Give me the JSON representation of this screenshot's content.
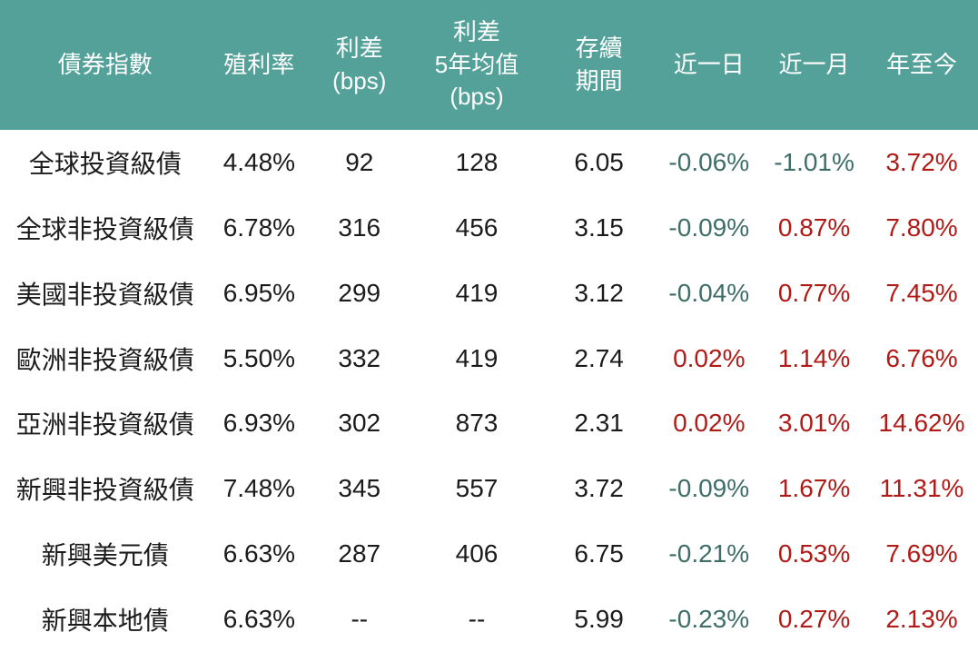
{
  "colors": {
    "header_bg": "#54a19a",
    "header_text": "#ffffff",
    "body_text": "#1b1b1b",
    "negative_change": "#3f6e68",
    "positive_change": "#b01b17"
  },
  "table": {
    "columns": [
      {
        "key": "name",
        "label": "債券指數"
      },
      {
        "key": "yield",
        "label": "殖利率"
      },
      {
        "key": "spread_bps",
        "label": "利差\n(bps)"
      },
      {
        "key": "spread_5y_avg_bps",
        "label": "利差\n5年均值\n(bps)"
      },
      {
        "key": "duration",
        "label": "存續\n期間"
      },
      {
        "key": "chg_1d",
        "label": "近一日"
      },
      {
        "key": "chg_1m",
        "label": "近一月"
      },
      {
        "key": "chg_ytd",
        "label": "年至今"
      }
    ],
    "change_columns": [
      "chg_1d",
      "chg_1m",
      "chg_ytd"
    ],
    "rows": [
      {
        "name": "全球投資級債",
        "yield": "4.48%",
        "spread_bps": "92",
        "spread_5y_avg_bps": "128",
        "duration": "6.05",
        "chg_1d": "-0.06%",
        "chg_1m": "-1.01%",
        "chg_ytd": "3.72%"
      },
      {
        "name": "全球非投資級債",
        "yield": "6.78%",
        "spread_bps": "316",
        "spread_5y_avg_bps": "456",
        "duration": "3.15",
        "chg_1d": "-0.09%",
        "chg_1m": "0.87%",
        "chg_ytd": "7.80%"
      },
      {
        "name": "美國非投資級債",
        "yield": "6.95%",
        "spread_bps": "299",
        "spread_5y_avg_bps": "419",
        "duration": "3.12",
        "chg_1d": "-0.04%",
        "chg_1m": "0.77%",
        "chg_ytd": "7.45%"
      },
      {
        "name": "歐洲非投資級債",
        "yield": "5.50%",
        "spread_bps": "332",
        "spread_5y_avg_bps": "419",
        "duration": "2.74",
        "chg_1d": "0.02%",
        "chg_1m": "1.14%",
        "chg_ytd": "6.76%"
      },
      {
        "name": "亞洲非投資級債",
        "yield": "6.93%",
        "spread_bps": "302",
        "spread_5y_avg_bps": "873",
        "duration": "2.31",
        "chg_1d": "0.02%",
        "chg_1m": "3.01%",
        "chg_ytd": "14.62%"
      },
      {
        "name": "新興非投資級債",
        "yield": "7.48%",
        "spread_bps": "345",
        "spread_5y_avg_bps": "557",
        "duration": "3.72",
        "chg_1d": "-0.09%",
        "chg_1m": "1.67%",
        "chg_ytd": "11.31%"
      },
      {
        "name": "新興美元債",
        "yield": "6.63%",
        "spread_bps": "287",
        "spread_5y_avg_bps": "406",
        "duration": "6.75",
        "chg_1d": "-0.21%",
        "chg_1m": "0.53%",
        "chg_ytd": "7.69%"
      },
      {
        "name": "新興本地債",
        "yield": "6.63%",
        "spread_bps": "--",
        "spread_5y_avg_bps": "--",
        "duration": "5.99",
        "chg_1d": "-0.23%",
        "chg_1m": "0.27%",
        "chg_ytd": "2.13%"
      }
    ]
  },
  "chart_data": {
    "type": "table",
    "title": "債券指數統計表",
    "columns": [
      "債券指數",
      "殖利率",
      "利差(bps)",
      "利差5年均值(bps)",
      "存續期間",
      "近一日",
      "近一月",
      "年至今"
    ],
    "rows": [
      [
        "全球投資級債",
        "4.48%",
        "92",
        "128",
        "6.05",
        "-0.06%",
        "-1.01%",
        "3.72%"
      ],
      [
        "全球非投資級債",
        "6.78%",
        "316",
        "456",
        "3.15",
        "-0.09%",
        "0.87%",
        "7.80%"
      ],
      [
        "美國非投資級債",
        "6.95%",
        "299",
        "419",
        "3.12",
        "-0.04%",
        "0.77%",
        "7.45%"
      ],
      [
        "歐洲非投資級債",
        "5.50%",
        "332",
        "419",
        "2.74",
        "0.02%",
        "1.14%",
        "6.76%"
      ],
      [
        "亞洲非投資級債",
        "6.93%",
        "302",
        "873",
        "2.31",
        "0.02%",
        "3.01%",
        "14.62%"
      ],
      [
        "新興非投資級債",
        "7.48%",
        "345",
        "557",
        "3.72",
        "-0.09%",
        "1.67%",
        "11.31%"
      ],
      [
        "新興美元債",
        "6.63%",
        "287",
        "406",
        "6.75",
        "-0.21%",
        "0.53%",
        "7.69%"
      ],
      [
        "新興本地債",
        "6.63%",
        "--",
        "--",
        "5.99",
        "-0.23%",
        "0.27%",
        "2.13%"
      ]
    ],
    "color_rule": "negative change values rendered teal (#3f6e68), positive rendered dark red (#b01b17)"
  }
}
